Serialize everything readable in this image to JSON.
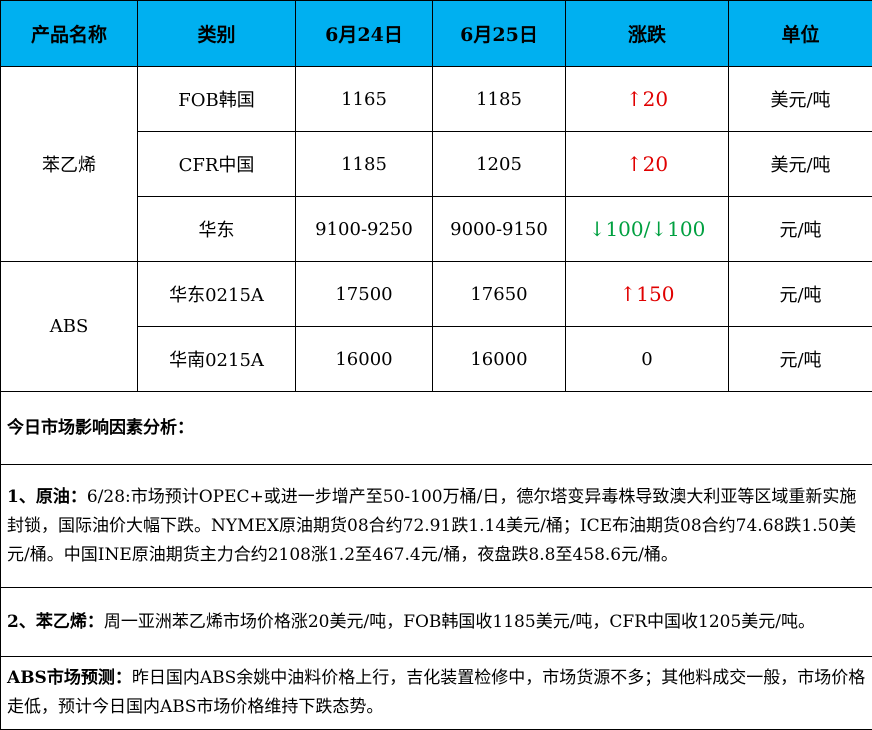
{
  "headers": [
    "产品名称",
    "类别",
    "6月24日",
    "6月25日",
    "涨跌",
    "单位"
  ],
  "groups": [
    {
      "product": "苯乙烯",
      "rows": [
        {
          "category": "FOB韩国",
          "jun24": "1165",
          "jun25": "1185",
          "change": "↑20",
          "dir": "up",
          "unit": "美元/吨"
        },
        {
          "category": "CFR中国",
          "jun24": "1185",
          "jun25": "1205",
          "change": "↑20",
          "dir": "up",
          "unit": "美元/吨"
        },
        {
          "category": "华东",
          "jun24": "9100-9250",
          "jun25": "9000-9150",
          "change": "↓100/↓100",
          "dir": "down",
          "unit": "元/吨"
        }
      ]
    },
    {
      "product": "ABS",
      "rows": [
        {
          "category": "华东0215A",
          "jun24": "17500",
          "jun25": "17650",
          "change": "↑150",
          "dir": "up",
          "unit": "元/吨"
        },
        {
          "category": "华南0215A",
          "jun24": "16000",
          "jun25": "16000",
          "change": "0",
          "dir": "flat",
          "unit": "元/吨"
        }
      ]
    }
  ],
  "analysis": {
    "title": "今日市场影响因素分析：",
    "items": [
      {
        "label": "1、原油：",
        "text": "6/28:市场预计OPEC+或进一步增产至50-100万桶/日，德尔塔变异毒株导致澳大利亚等区域重新实施封锁，国际油价大幅下跌。NYMEX原油期货08合约72.91跌1.14美元/桶；ICE布油期货08合约74.68跌1.50美元/桶。中国INE原油期货主力合约2108涨1.2至467.4元/桶，夜盘跌8.8至458.6元/桶。"
      },
      {
        "label": "2、苯乙烯：",
        "text": "周一亚洲苯乙烯市场价格涨20美元/吨，FOB韩国收1185美元/吨，CFR中国收1205美元/吨。"
      },
      {
        "label": "ABS市场预测：",
        "text": "昨日国内ABS余姚中油料价格上行，吉化装置检修中，市场货源不多；其他料成交一般，市场价格走低，预计今日国内ABS市场价格维持下跌态势。"
      }
    ]
  },
  "colors": {
    "header_bg": "#00b0f0",
    "up": "#e00000",
    "down": "#00a040"
  }
}
